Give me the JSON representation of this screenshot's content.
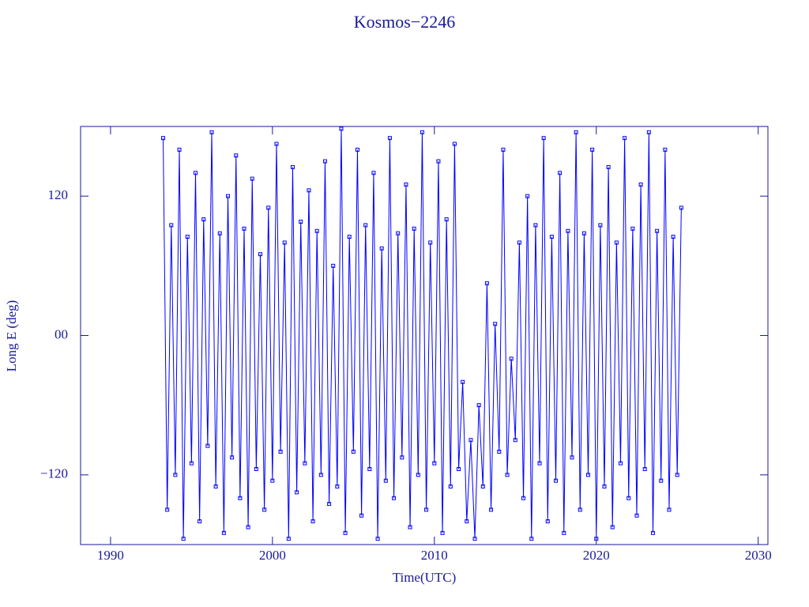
{
  "chart_data": {
    "type": "line",
    "title": "Kosmos−2246",
    "x_label": "Time(UTC)",
    "y_label": "Long E (deg)",
    "xlim": [
      1988.15,
      2030.6
    ],
    "ylim": [
      -180,
      180
    ],
    "xticks": [
      1990,
      2000,
      2010,
      2020,
      2030
    ],
    "yticks": [
      {
        "value": 120,
        "label": "120"
      },
      {
        "value": 0,
        "label": "00"
      },
      {
        "value": -120,
        "label": "−120"
      }
    ],
    "series": [
      {
        "color": "#0000ff",
        "x": [
          1993.25,
          1993.5,
          1993.75,
          1994,
          1994.25,
          1994.5,
          1994.75,
          1995,
          1995.25,
          1995.5,
          1995.75,
          1996,
          1996.25,
          1996.5,
          1996.75,
          1997,
          1997.25,
          1997.5,
          1997.75,
          1998,
          1998.25,
          1998.5,
          1998.75,
          1999,
          1999.25,
          1999.5,
          1999.75,
          2000,
          2000.25,
          2000.5,
          2000.75,
          2001,
          2001.25,
          2001.5,
          2001.75,
          2002,
          2002.25,
          2002.5,
          2002.75,
          2003,
          2003.25,
          2003.5,
          2003.75,
          2004,
          2004.25,
          2004.5,
          2004.75,
          2005,
          2005.25,
          2005.5,
          2005.75,
          2006,
          2006.25,
          2006.5,
          2006.75,
          2007,
          2007.25,
          2007.5,
          2007.75,
          2008,
          2008.25,
          2008.5,
          2008.75,
          2009,
          2009.25,
          2009.5,
          2009.75,
          2010,
          2010.25,
          2010.5,
          2010.75,
          2011,
          2011.25,
          2011.5,
          2011.75,
          2012,
          2012.25,
          2012.5,
          2012.75,
          2013,
          2013.25,
          2013.5,
          2013.75,
          2014,
          2014.25,
          2014.5,
          2014.75,
          2015,
          2015.25,
          2015.5,
          2015.75,
          2016,
          2016.25,
          2016.5,
          2016.75,
          2017,
          2017.25,
          2017.5,
          2017.75,
          2018,
          2018.25,
          2018.5,
          2018.75,
          2019,
          2019.25,
          2019.5,
          2019.75,
          2020,
          2020.25,
          2020.5,
          2020.75,
          2021,
          2021.25,
          2021.5,
          2021.75,
          2022,
          2022.25,
          2022.5,
          2022.75,
          2023,
          2023.25,
          2023.5,
          2023.75,
          2024,
          2024.25,
          2024.5,
          2024.75,
          2025,
          2025.25
        ],
        "values": [
          170,
          -150,
          95,
          -120,
          160,
          -175,
          85,
          -110,
          140,
          -160,
          100,
          -95,
          175,
          -130,
          88,
          -170,
          120,
          -105,
          155,
          -140,
          92,
          -165,
          135,
          -115,
          70,
          -150,
          110,
          -125,
          165,
          -100,
          80,
          -175,
          145,
          -135,
          98,
          -110,
          125,
          -160,
          90,
          -120,
          150,
          -145,
          60,
          -130,
          178,
          -170,
          85,
          -100,
          160,
          -155,
          95,
          -115,
          140,
          -175,
          75,
          -125,
          170,
          -140,
          88,
          -105,
          130,
          -165,
          92,
          -120,
          175,
          -150,
          80,
          -110,
          150,
          -170,
          100,
          -130,
          165,
          -115,
          -40,
          -160,
          -90,
          -175,
          -60,
          -130,
          45,
          -150,
          10,
          -100,
          160,
          -120,
          -20,
          -90,
          80,
          -140,
          120,
          -175,
          95,
          -110,
          170,
          -160,
          85,
          -125,
          140,
          -170,
          90,
          -105,
          175,
          -150,
          88,
          -120,
          160,
          -175,
          95,
          -130,
          145,
          -165,
          80,
          -110,
          170,
          -140,
          92,
          -155,
          130,
          -115,
          175,
          -170,
          90,
          -125,
          160,
          -150,
          85,
          -120,
          110
        ]
      }
    ]
  }
}
